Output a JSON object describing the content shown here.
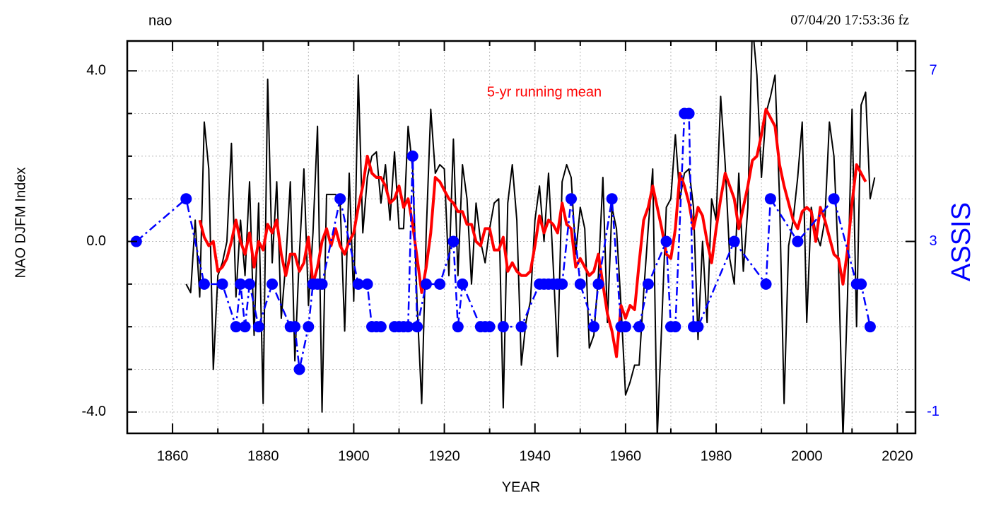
{
  "chart_data": {
    "type": "line",
    "title": "nao",
    "subtitle": "07/04/20  17:53:36 fz",
    "xlabel": "YEAR",
    "ylabel": "NAO DJFM Index",
    "y2label": "ASSIS",
    "xlim": [
      1850,
      2024
    ],
    "xticks": [
      1860,
      1880,
      1900,
      1920,
      1940,
      1960,
      1980,
      2000,
      2020
    ],
    "xminor": [
      1870,
      1890,
      1910,
      1930,
      1950,
      1970,
      1990,
      2010
    ],
    "ylim": [
      -4.5,
      4.7
    ],
    "yticks": [
      {
        "value": -4,
        "label": "-4.0"
      },
      {
        "value": 0,
        "label": "0.0"
      },
      {
        "value": 4,
        "label": "4.0"
      }
    ],
    "yminor": [
      -3,
      -2,
      -1,
      1,
      2,
      3
    ],
    "y2lim": [
      -1.5,
      7.7
    ],
    "y2ticks": [
      -1,
      3,
      7
    ],
    "grid": true,
    "series": [
      {
        "color": "#000000",
        "style": "solid",
        "x": [
          1863,
          1864,
          1865,
          1866,
          1867,
          1868,
          1869,
          1870,
          1871,
          1872,
          1873,
          1874,
          1875,
          1876,
          1877,
          1878,
          1879,
          1880,
          1881,
          1882,
          1883,
          1884,
          1885,
          1886,
          1887,
          1888,
          1889,
          1890,
          1891,
          1892,
          1893,
          1894,
          1895,
          1896,
          1897,
          1898,
          1899,
          1900,
          1901,
          1902,
          1903,
          1904,
          1905,
          1906,
          1907,
          1908,
          1909,
          1910,
          1911,
          1912,
          1913,
          1914,
          1915,
          1916,
          1917,
          1918,
          1919,
          1920,
          1921,
          1922,
          1923,
          1924,
          1925,
          1926,
          1927,
          1928,
          1929,
          1930,
          1931,
          1932,
          1933,
          1934,
          1935,
          1936,
          1937,
          1938,
          1939,
          1940,
          1941,
          1942,
          1943,
          1944,
          1945,
          1946,
          1947,
          1948,
          1949,
          1950,
          1951,
          1952,
          1953,
          1954,
          1955,
          1956,
          1957,
          1958,
          1959,
          1960,
          1961,
          1962,
          1963,
          1964,
          1965,
          1966,
          1967,
          1968,
          1969,
          1970,
          1971,
          1972,
          1973,
          1974,
          1975,
          1976,
          1977,
          1978,
          1979,
          1980,
          1981,
          1982,
          1983,
          1984,
          1985,
          1986,
          1987,
          1988,
          1989,
          1990,
          1991,
          1992,
          1993,
          1994,
          1995,
          1996,
          1997,
          1998,
          1999,
          2000,
          2001,
          2002,
          2003,
          2004,
          2005,
          2006,
          2007,
          2008,
          2009,
          2010,
          2011,
          2012,
          2013,
          2014,
          2015
        ],
        "values": [
          -1.0,
          -1.2,
          0.5,
          -1.3,
          2.8,
          1.7,
          -3.0,
          -0.8,
          -0.5,
          0.0,
          2.3,
          -1.3,
          0.5,
          -0.8,
          1.4,
          -2.2,
          0.9,
          -3.8,
          3.8,
          -0.5,
          1.4,
          -1.8,
          -0.5,
          1.4,
          -2.8,
          -0.3,
          1.7,
          -1.5,
          0.2,
          2.7,
          -4.0,
          1.1,
          1.1,
          1.1,
          0.9,
          -2.1,
          1.6,
          -1.4,
          3.9,
          0.2,
          1.5,
          2.0,
          2.1,
          0.9,
          1.8,
          0.5,
          2.1,
          0.3,
          0.3,
          2.7,
          1.7,
          -1.5,
          -3.8,
          0.2,
          3.1,
          1.6,
          1.8,
          1.7,
          -0.8,
          2.4,
          -0.8,
          1.8,
          1.0,
          -1.0,
          0.9,
          0.0,
          -0.5,
          0.3,
          0.9,
          1.0,
          -3.9,
          0.9,
          1.8,
          0.5,
          -2.9,
          -1.9,
          -1.4,
          0.5,
          1.3,
          0.0,
          1.6,
          -0.5,
          -2.7,
          1.4,
          1.8,
          1.5,
          -0.3,
          0.8,
          0.3,
          -2.5,
          -2.2,
          -0.8,
          1.5,
          -1.9,
          0.8,
          0.3,
          -1.5,
          -3.6,
          -3.3,
          -2.9,
          -2.9,
          -1.2,
          0.3,
          1.7,
          -4.6,
          -1.9,
          0.8,
          1.0,
          2.5,
          1.0,
          1.6,
          1.7,
          0.8,
          -2.3,
          0.0,
          -1.9,
          1.0,
          0.5,
          3.4,
          1.8,
          -0.4,
          -1.0,
          1.6,
          -0.7,
          0.8,
          5.1,
          3.9,
          1.5,
          3.0,
          3.4,
          3.9,
          1.0,
          -3.8,
          -0.1,
          0.5,
          1.5,
          2.8,
          -1.9,
          0.8,
          0.2,
          -0.1,
          0.5,
          2.8,
          2.0,
          -0.5,
          -4.6,
          -1.3,
          3.1,
          -2.0,
          3.2,
          3.5,
          1.0,
          1.5
        ]
      },
      {
        "name": "5-yr running mean",
        "color": "#ff0000",
        "style": "solid",
        "x": [
          1866,
          1867,
          1868,
          1869,
          1870,
          1871,
          1872,
          1873,
          1874,
          1875,
          1876,
          1877,
          1878,
          1879,
          1880,
          1881,
          1882,
          1883,
          1884,
          1885,
          1886,
          1887,
          1888,
          1889,
          1890,
          1891,
          1892,
          1893,
          1894,
          1895,
          1896,
          1897,
          1898,
          1899,
          1900,
          1901,
          1902,
          1903,
          1904,
          1905,
          1906,
          1907,
          1908,
          1909,
          1910,
          1911,
          1912,
          1913,
          1914,
          1915,
          1916,
          1917,
          1918,
          1919,
          1920,
          1921,
          1922,
          1923,
          1924,
          1925,
          1926,
          1927,
          1928,
          1929,
          1930,
          1931,
          1932,
          1933,
          1934,
          1935,
          1936,
          1937,
          1938,
          1939,
          1940,
          1941,
          1942,
          1943,
          1944,
          1945,
          1946,
          1947,
          1948,
          1949,
          1950,
          1951,
          1952,
          1953,
          1954,
          1955,
          1956,
          1957,
          1958,
          1959,
          1960,
          1961,
          1962,
          1963,
          1964,
          1965,
          1966,
          1967,
          1968,
          1969,
          1970,
          1971,
          1972,
          1973,
          1974,
          1975,
          1976,
          1977,
          1978,
          1979,
          1980,
          1981,
          1982,
          1983,
          1984,
          1985,
          1986,
          1987,
          1988,
          1989,
          1990,
          1991,
          1992,
          1993,
          1994,
          1995,
          1996,
          1997,
          1998,
          1999,
          2000,
          2001,
          2002,
          2003,
          2004,
          2005,
          2006,
          2007,
          2008,
          2009,
          2010,
          2011,
          2012,
          2013
        ],
        "values": [
          0.5,
          0.1,
          -0.1,
          0.0,
          -0.7,
          -0.6,
          -0.4,
          0.0,
          0.5,
          0.0,
          -0.3,
          0.2,
          -0.6,
          0.0,
          -0.2,
          0.4,
          0.2,
          0.5,
          -0.3,
          -0.8,
          -0.3,
          -0.3,
          -0.7,
          -0.5,
          0.1,
          -1.0,
          -0.6,
          0.0,
          0.3,
          -0.1,
          0.3,
          -0.1,
          -0.3,
          0.0,
          0.2,
          0.8,
          1.3,
          2.0,
          1.6,
          1.5,
          1.5,
          1.3,
          0.9,
          1.0,
          1.3,
          0.8,
          1.0,
          0.4,
          -0.4,
          -1.2,
          -0.6,
          0.2,
          1.5,
          1.4,
          1.2,
          1.0,
          0.9,
          0.7,
          0.7,
          0.4,
          0.4,
          0.0,
          -0.1,
          0.3,
          0.3,
          -0.2,
          -0.2,
          0.1,
          -0.7,
          -0.5,
          -0.7,
          -0.8,
          -0.8,
          -0.7,
          -0.1,
          0.6,
          0.2,
          0.5,
          0.4,
          0.2,
          0.9,
          0.4,
          0.3,
          -0.6,
          -0.4,
          -0.6,
          -0.8,
          -0.7,
          -0.3,
          -1.0,
          -1.7,
          -2.1,
          -2.7,
          -1.5,
          -1.8,
          -1.5,
          -1.6,
          -0.5,
          0.5,
          0.8,
          1.3,
          0.8,
          0.3,
          -0.3,
          -0.4,
          0.3,
          1.6,
          1.3,
          0.9,
          0.3,
          0.8,
          0.6,
          0.0,
          -0.5,
          0.3,
          1.0,
          1.6,
          1.3,
          1.0,
          0.3,
          0.8,
          1.3,
          1.9,
          2.0,
          2.5,
          3.1,
          2.9,
          2.7,
          1.8,
          1.3,
          0.9,
          0.5,
          0.3,
          0.7,
          0.8,
          0.7,
          0.0,
          0.8,
          0.5,
          0.1,
          -0.3,
          -0.4,
          -1.0,
          -0.2,
          0.9,
          1.8,
          1.6,
          1.4
        ]
      },
      {
        "color": "#0000ff",
        "style": "dashdot",
        "markers": true,
        "axis": "y2",
        "x": [
          1852,
          1863,
          1867,
          1871,
          1874,
          1875,
          1876,
          1877,
          1879,
          1882,
          1886,
          1887,
          1888,
          1890,
          1891,
          1892,
          1893,
          1897,
          1901,
          1903,
          1904,
          1905,
          1906,
          1909,
          1910,
          1911,
          1912,
          1913,
          1914,
          1916,
          1919,
          1922,
          1923,
          1924,
          1928,
          1929,
          1930,
          1933,
          1937,
          1941,
          1942,
          1943,
          1944,
          1945,
          1946,
          1948,
          1950,
          1953,
          1954,
          1957,
          1959,
          1960,
          1963,
          1965,
          1969,
          1970,
          1971,
          1973,
          1974,
          1975,
          1976,
          1984,
          1991,
          1992,
          1998,
          2006,
          2011,
          2012,
          2014
        ],
        "values": [
          3,
          4,
          2,
          2,
          1,
          2,
          1,
          2,
          1,
          2,
          1,
          1,
          0,
          1,
          2,
          2,
          2,
          4,
          2,
          2,
          1,
          1,
          1,
          1,
          1,
          1,
          1,
          5,
          1,
          2,
          2,
          3,
          1,
          2,
          1,
          1,
          1,
          1,
          1,
          2,
          2,
          2,
          2,
          2,
          2,
          4,
          2,
          1,
          2,
          4,
          1,
          1,
          1,
          2,
          3,
          1,
          1,
          6,
          6,
          1,
          1,
          3,
          2,
          4,
          3,
          4,
          2,
          2,
          1
        ]
      }
    ]
  }
}
